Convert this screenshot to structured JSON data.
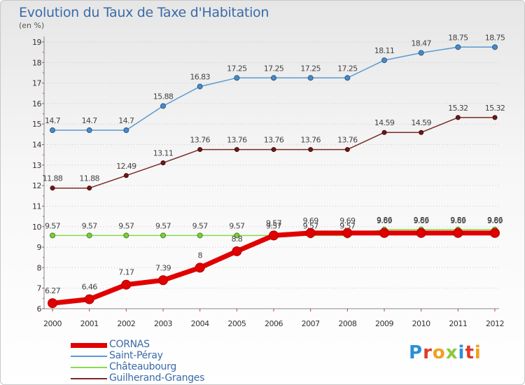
{
  "title": "Evolution du Taux de Taxe d'Habitation",
  "unit": "(en %)",
  "logo": "Proxiti",
  "colors": {
    "title": "#3a6aa8",
    "cornas": "#e00000",
    "saint_peray": "#5a9ad2",
    "chateaubourg": "#8cd84c",
    "guilherand": "#7a2a2a"
  },
  "chart_data": {
    "type": "line",
    "title": "Evolution du Taux de Taxe d'Habitation",
    "ylabel": "(en %)",
    "xlabel": "",
    "x": [
      "2000",
      "2001",
      "2002",
      "2003",
      "2004",
      "2005",
      "2006",
      "2007",
      "2008",
      "2009",
      "2010",
      "2011",
      "2012"
    ],
    "ylim": [
      6,
      19
    ],
    "yticks": [
      6,
      7,
      8,
      9,
      10,
      11,
      12,
      13,
      14,
      15,
      16,
      17,
      18,
      19
    ],
    "grid": "horizontal dotted",
    "legend_position": "bottom-left",
    "series": [
      {
        "name": "CORNAS",
        "color": "#e00000",
        "values": [
          6.27,
          6.46,
          7.17,
          7.39,
          8,
          8.8,
          9.57,
          9.69,
          9.69,
          9.69,
          9.69,
          9.69,
          9.69
        ]
      },
      {
        "name": "Saint-Péray",
        "color": "#5a9ad2",
        "values": [
          14.7,
          14.7,
          14.7,
          15.88,
          16.83,
          17.25,
          17.25,
          17.25,
          17.25,
          18.11,
          18.47,
          18.75,
          18.75
        ]
      },
      {
        "name": "Châteaubourg",
        "color": "#8cd84c",
        "values": [
          9.57,
          9.57,
          9.57,
          9.57,
          9.57,
          9.57,
          9.57,
          9.57,
          9.57,
          9.86,
          9.86,
          9.86,
          9.86
        ]
      },
      {
        "name": "Guilherand-Granges",
        "color": "#7a2a2a",
        "values": [
          11.88,
          11.88,
          12.49,
          13.11,
          13.76,
          13.76,
          13.76,
          13.76,
          13.76,
          14.59,
          14.59,
          15.32,
          15.32
        ]
      }
    ],
    "labels": [
      {
        "series": "CORNAS",
        "values": [
          "6.27",
          "6.46",
          "7.17",
          "7.39",
          "8",
          "8.8",
          "9.57",
          "9.69",
          "9.69",
          "9.69",
          "9.69",
          "9.69",
          "9.69"
        ]
      },
      {
        "series": "Saint-Péray",
        "values": [
          "14.7",
          "14.7",
          "14.7",
          "15.88",
          "16.83",
          "17.25",
          "17.25",
          "17.25",
          "17.25",
          "18.11",
          "18.47",
          "18.75",
          "18.75"
        ]
      },
      {
        "series": "Châteaubourg",
        "values": [
          "9.57",
          "9.57",
          "9.57",
          "9.57",
          "9.57",
          "9.57",
          "9.57",
          "9.57",
          "9.57",
          "9.86",
          "9.86",
          "9.86",
          "9.86"
        ]
      },
      {
        "series": "Guilherand-Granges",
        "values": [
          "11.88",
          "11.88",
          "12.49",
          "13.11",
          "13.76",
          "13.76",
          "13.76",
          "13.76",
          "13.76",
          "14.59",
          "14.59",
          "15.32",
          "15.32"
        ]
      }
    ]
  }
}
